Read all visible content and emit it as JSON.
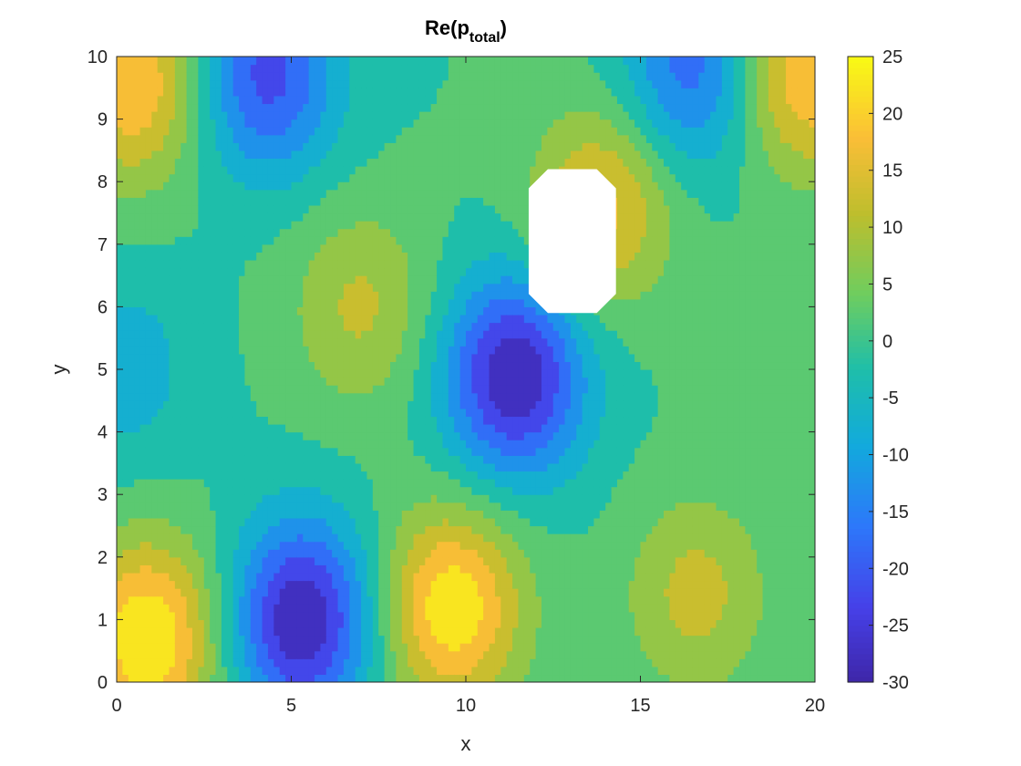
{
  "chart_data": {
    "type": "contourf",
    "title": "Re(p",
    "title_subscript": "total",
    "title_suffix": ")",
    "xlabel": "x",
    "ylabel": "y",
    "xlim": [
      0,
      20
    ],
    "ylim": [
      0,
      10
    ],
    "xticks": [
      "0",
      "5",
      "10",
      "15",
      "20"
    ],
    "yticks": [
      "0",
      "1",
      "2",
      "3",
      "4",
      "5",
      "6",
      "7",
      "8",
      "9",
      "10"
    ],
    "colorbar": {
      "colormap": "parula",
      "range": [
        -30,
        25
      ],
      "ticks": [
        "-30",
        "-25",
        "-20",
        "-15",
        "-10",
        "-5",
        "0",
        "5",
        "10",
        "15",
        "20",
        "25"
      ]
    },
    "contour_levels": [
      -30,
      -25,
      -20,
      -15,
      -10,
      -5,
      0,
      5,
      10,
      15,
      20,
      25
    ],
    "obstacle": {
      "shape": "octagon",
      "x_range": [
        11.8,
        14.3
      ],
      "y_range": [
        5.9,
        8.2
      ]
    },
    "extrema": [
      {
        "kind": "max",
        "x": 0.9,
        "y": 0.7,
        "value": 25
      },
      {
        "kind": "min",
        "x": 5.3,
        "y": 1.0,
        "value": -30
      },
      {
        "kind": "max",
        "x": 9.6,
        "y": 1.2,
        "value": 24
      },
      {
        "kind": "min",
        "x": 11.4,
        "y": 4.9,
        "value": -30
      },
      {
        "kind": "max",
        "x": 16.6,
        "y": 1.4,
        "value": 12
      },
      {
        "kind": "max",
        "x": 7.0,
        "y": 6.0,
        "value": 11
      },
      {
        "kind": "min",
        "x": 4.3,
        "y": 9.7,
        "value": -22
      },
      {
        "kind": "min",
        "x": 16.5,
        "y": 9.8,
        "value": -18
      },
      {
        "kind": "max",
        "x": 0.5,
        "y": 9.6,
        "value": 20
      },
      {
        "kind": "max",
        "x": 19.7,
        "y": 9.7,
        "value": 20
      },
      {
        "kind": "max",
        "x": 13.9,
        "y": 7.6,
        "value": 17
      },
      {
        "kind": "min",
        "x": 0.2,
        "y": 5.0,
        "value": -8
      }
    ]
  }
}
